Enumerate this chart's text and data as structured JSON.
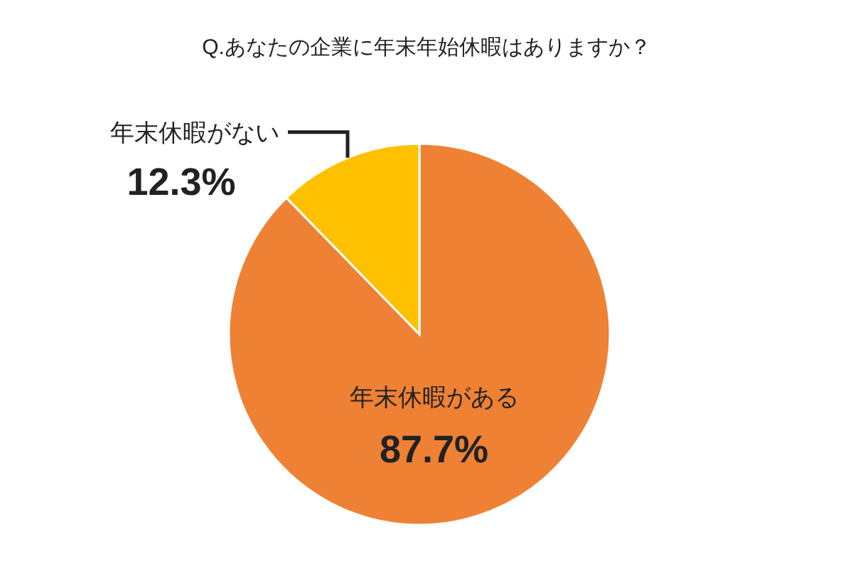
{
  "chart_data": {
    "type": "pie",
    "title": "Q.あなたの企業に年末年始休暇はありますか？",
    "categories": [
      "年末休暇がある",
      "年末休暇がない"
    ],
    "values": [
      87.7,
      12.3
    ],
    "colors": [
      "#ee8134",
      "#ffc000"
    ],
    "value_labels": [
      "87.7%",
      "12.3%"
    ]
  }
}
